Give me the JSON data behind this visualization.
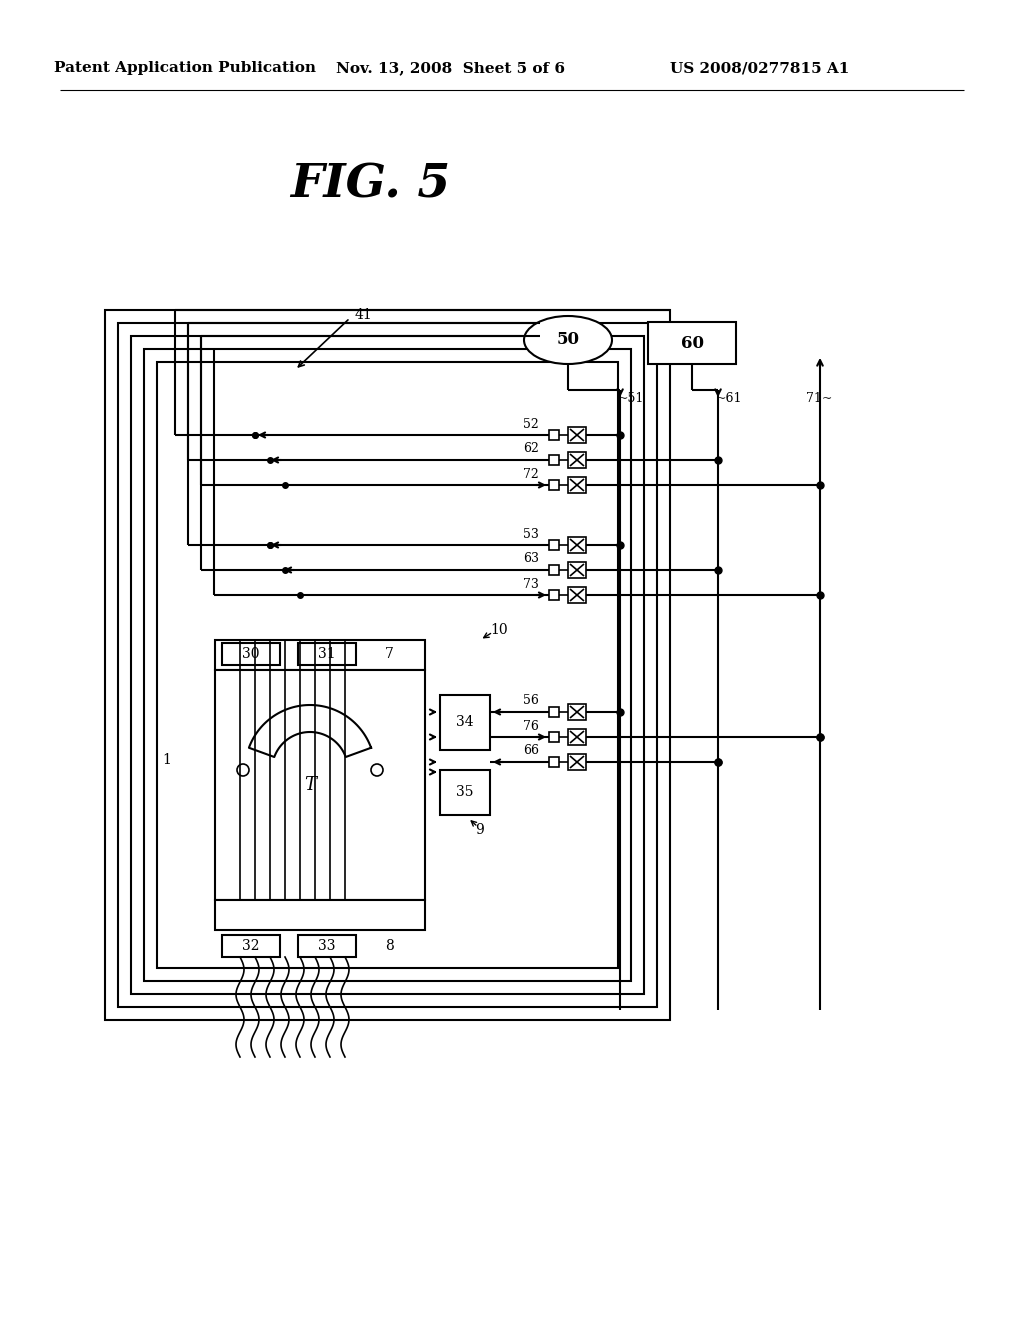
{
  "title": "FIG. 5",
  "header_left": "Patent Application Publication",
  "header_center": "Nov. 13, 2008  Sheet 5 of 6",
  "header_right": "US 2008/0277815 A1",
  "bg_color": "#ffffff",
  "line_color": "#000000",
  "text_color": "#000000"
}
